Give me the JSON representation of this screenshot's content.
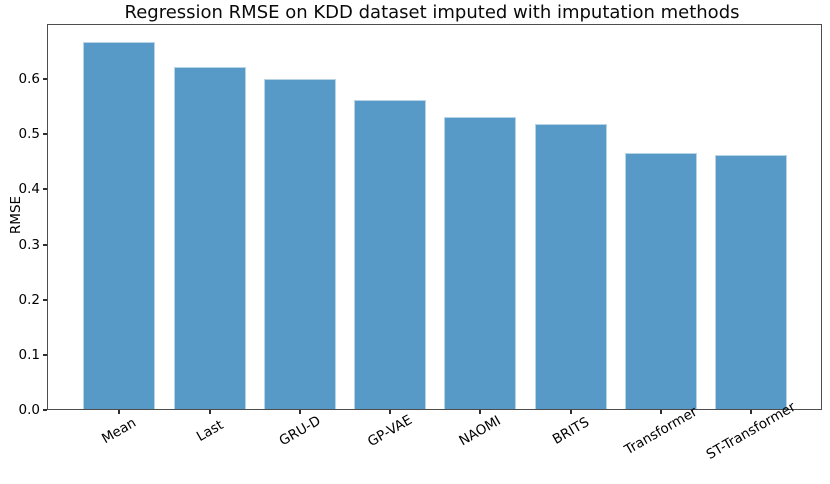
{
  "chart_data": {
    "type": "bar",
    "title": "Regression RMSE on KDD dataset imputed with imputation methods",
    "xlabel": "",
    "ylabel": "RMSE",
    "categories": [
      "Mean",
      "Last",
      "GRU-D",
      "GP-VAE",
      "NAOMI",
      "BRITS",
      "Transformer",
      "ST-Transformer"
    ],
    "values": [
      0.665,
      0.621,
      0.599,
      0.561,
      0.529,
      0.516,
      0.465,
      0.46
    ],
    "ylim": [
      0,
      0.7
    ],
    "yticks": [
      "0.0",
      "0.1",
      "0.2",
      "0.3",
      "0.4",
      "0.5",
      "0.6"
    ],
    "xtick_rotation_deg": 30,
    "grid": false,
    "legend": null,
    "colors": {
      "bar_fill": "#5799c7",
      "bar_edge": "#b7d3e6",
      "axis": "#4d4d4d",
      "tick": "#2e2e2e",
      "text": "#000000",
      "background": "#ffffff"
    }
  }
}
